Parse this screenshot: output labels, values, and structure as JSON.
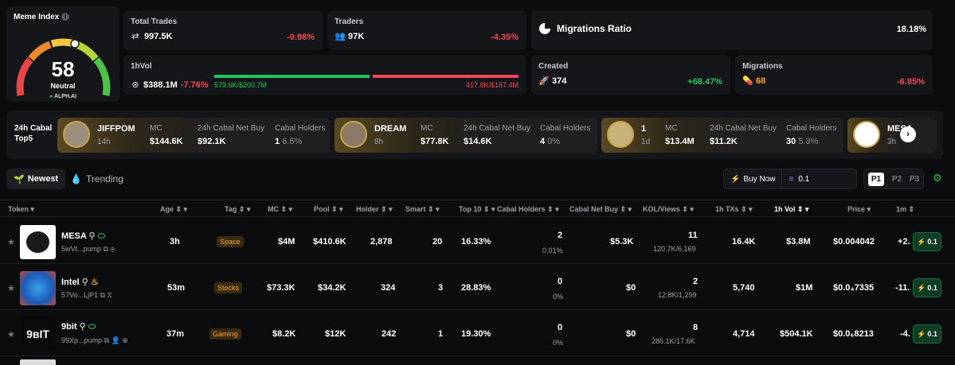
{
  "meme_index": {
    "title": "Meme Index",
    "value": "58",
    "label": "Neutral",
    "brand": "ALPH.AI",
    "level": 0.58
  },
  "total_trades": {
    "label": "Total Trades",
    "value": "997.5K",
    "change": "-0.98%"
  },
  "traders": {
    "label": "Traders",
    "value": "97K",
    "change": "-4.35%"
  },
  "migrations_ratio": {
    "label": "Migrations Ratio",
    "value": "18.18%"
  },
  "vol1h": {
    "label": "1hVol",
    "value": "$388.1M",
    "change": "-7.76%",
    "buy": "579.6K/$200.7M",
    "sell": "417.8K/$187.4M",
    "buy_fraction": 0.517
  },
  "created": {
    "label": "Created",
    "value": "374",
    "change": "+68.47%"
  },
  "migrations": {
    "label": "Migrations",
    "value": "68",
    "change": "-6.85%"
  },
  "cabal": {
    "title_line1": "24h Cabal",
    "title_line2": "Top5",
    "labels": {
      "mc": "MC",
      "net_buy": "24h Cabal Net Buy",
      "holders": "Cabal Holders"
    },
    "items": [
      {
        "name": "JIFFPOM",
        "age": "14h",
        "mc": "$144.6K",
        "net_buy": "$92.1K",
        "holders": "1",
        "holders_pct": "6.6%"
      },
      {
        "name": "DREAM",
        "age": "8h",
        "mc": "$77.8K",
        "net_buy": "$14.6K",
        "holders": "4",
        "holders_pct": "0%"
      },
      {
        "name": "1",
        "age": "1d",
        "mc": "$13.4M",
        "net_buy": "$11.2K",
        "holders": "30",
        "holders_pct": "5.3%"
      },
      {
        "name": "MESA",
        "age": "3h"
      }
    ]
  },
  "tabs": {
    "newest": "Newest",
    "trending": "Trending"
  },
  "buy": {
    "label": "Buy Now",
    "amount": "0.1"
  },
  "pages": [
    "P1",
    "P2",
    "P3"
  ],
  "columns": {
    "token": "Token",
    "age": "Age",
    "tag": "Tag",
    "mc": "MC",
    "pool": "Pool",
    "holder": "Holder",
    "smart": "Smart",
    "top10": "Top 10",
    "cabal_holders": "Cabal Holders",
    "cabal_net_buy": "Cabal Net Buy",
    "kol": "KOL/Views",
    "txs": "1h TXs",
    "vol": "1h Vol",
    "price": "Price",
    "chg": "1m"
  },
  "rows": [
    {
      "name": "MESA",
      "addr": "5wVt...pump",
      "age": "3h",
      "tag": "Space",
      "mc": "$4M",
      "pool": "$410.6K",
      "holder": "2,878",
      "smart": "20",
      "top10": "16.33%",
      "cabal_holders": "2",
      "cabal_pct": "0.01%",
      "cabal_net_buy": "$5.3K",
      "kol": "11",
      "views": "120.7K/6,169",
      "txs": "16.4K",
      "vol": "$3.8M",
      "price": "$0.004042",
      "chg": "+2.",
      "quick_buy": "0.1"
    },
    {
      "name": "Intel",
      "addr": "57Vo...LjP1",
      "age": "53m",
      "tag": "Stocks",
      "mc": "$73.3K",
      "pool": "$34.2K",
      "holder": "324",
      "smart": "3",
      "top10": "28.83%",
      "cabal_holders": "0",
      "cabal_pct": "0%",
      "cabal_net_buy": "$0",
      "kol": "2",
      "views": "12.8K/1,299",
      "txs": "5,740",
      "vol": "$1M",
      "price": "$0.0₄7335",
      "chg": "-11.",
      "quick_buy": "0.1"
    },
    {
      "name": "9bit",
      "addr": "99Xp...pump",
      "age": "37m",
      "tag": "Gaming",
      "mc": "$8.2K",
      "pool": "$12K",
      "holder": "242",
      "smart": "1",
      "top10": "19.30%",
      "cabal_holders": "0",
      "cabal_pct": "0%",
      "cabal_net_buy": "$0",
      "kol": "8",
      "views": "286.1K/17.6K",
      "txs": "4,714",
      "vol": "$504.1K",
      "price": "$0.0₆8213",
      "chg": "-4.",
      "quick_buy": "0.1"
    }
  ],
  "colors": {
    "accent_green": "#22c55e",
    "accent_red": "#f0485a",
    "accent_orange": "#f5a524"
  }
}
